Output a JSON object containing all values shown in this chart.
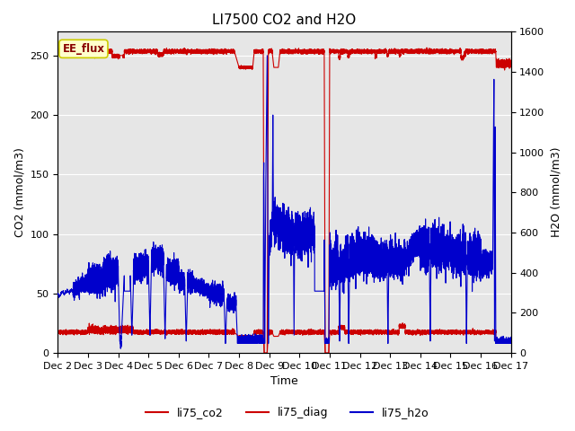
{
  "title": "LI7500 CO2 and H2O",
  "xlabel": "Time",
  "ylabel_left": "CO2 (mmol/m3)",
  "ylabel_right": "H2O (mmol/m3)",
  "ylim_left": [
    0,
    270
  ],
  "ylim_right": [
    0,
    1600
  ],
  "xtick_labels": [
    "Dec 2",
    "Dec 3",
    "Dec 4",
    "Dec 5",
    "Dec 6",
    "Dec 7",
    "Dec 8",
    "Dec 9",
    "Dec 10",
    "Dec 11",
    "Dec 12",
    "Dec 13",
    "Dec 14",
    "Dec 15",
    "Dec 16",
    "Dec 17"
  ],
  "background_color": "#ffffff",
  "plot_bg_color": "#e6e6e6",
  "grid_color": "#ffffff",
  "annotation_text": "EE_flux",
  "annotation_bg": "#ffffcc",
  "annotation_border": "#cccc00",
  "co2_color": "#cc0000",
  "diag_color": "#cc0000",
  "h2o_color": "#0000cc",
  "legend_labels": [
    "li75_co2",
    "li75_diag",
    "li75_h2o"
  ],
  "title_fontsize": 11,
  "axis_fontsize": 9,
  "tick_fontsize": 8,
  "linewidth": 0.8
}
